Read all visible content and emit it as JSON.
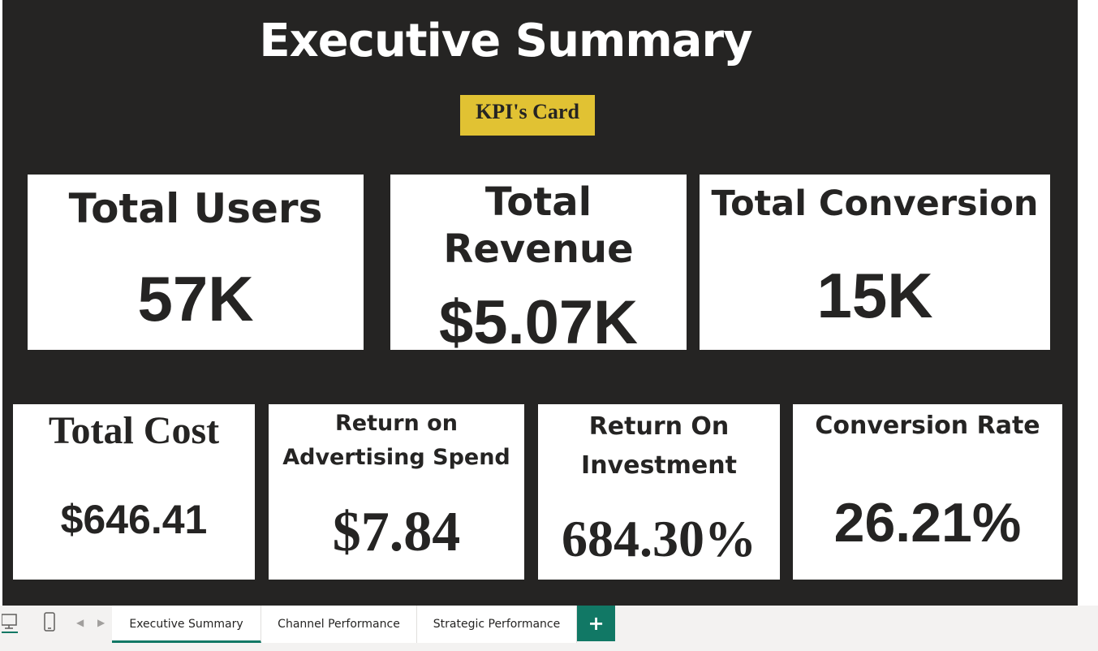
{
  "report": {
    "title": "Executive Summary",
    "badge": "KPI's Card"
  },
  "kpis": {
    "total_users": {
      "label": "Total Users",
      "value": "57K"
    },
    "total_revenue": {
      "label_line1": "Total",
      "label_line2": "Revenue",
      "value": "$5.07K"
    },
    "total_conversion": {
      "label": "Total Conversion",
      "value": "15K"
    },
    "total_cost": {
      "label": "Total Cost",
      "value": "$646.41"
    },
    "roas": {
      "label_line1": "Return on",
      "label_line2": "Advertising Spend",
      "value": "$7.84"
    },
    "roi": {
      "label_line1": "Return On",
      "label_line2": "Investment",
      "value": "684.30%"
    },
    "conversion_rate": {
      "label": "Conversion Rate",
      "value": "26.21%"
    }
  },
  "tabs": [
    {
      "label": "Executive Summary",
      "active": true
    },
    {
      "label": "Channel Performance",
      "active": false
    },
    {
      "label": "Strategic Performance",
      "active": false
    }
  ],
  "add_tab_label": "+",
  "colors": {
    "canvas": "#252423",
    "card": "#ffffff",
    "badge": "#e1c233",
    "accent": "#117865"
  },
  "icons": [
    "desktop-view-icon",
    "mobile-view-icon",
    "chevron-left-icon",
    "chevron-right-icon",
    "plus-icon"
  ]
}
